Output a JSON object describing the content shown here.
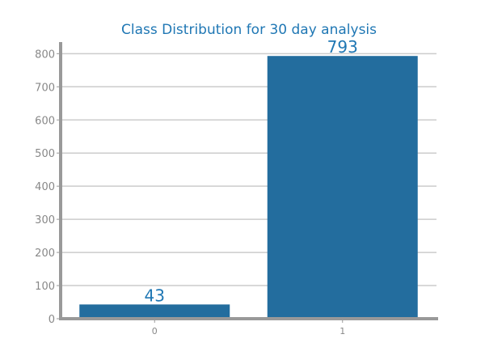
{
  "chart_data": {
    "type": "bar",
    "title": "Class Distribution for 30 day analysis",
    "categories": [
      "0",
      "1"
    ],
    "values": [
      43,
      793
    ],
    "data_labels": [
      "43",
      "793"
    ],
    "ylim": [
      0,
      835
    ],
    "yticks": [
      "0",
      "100",
      "200",
      "300",
      "400",
      "500",
      "600",
      "700",
      "800"
    ],
    "grid": true,
    "colors": {
      "bar": "#236d9e",
      "title": "#1f77b4",
      "label": "#1f77b4",
      "grid": "#cccccc",
      "axis": "#999999",
      "tick_text": "#888888"
    }
  }
}
